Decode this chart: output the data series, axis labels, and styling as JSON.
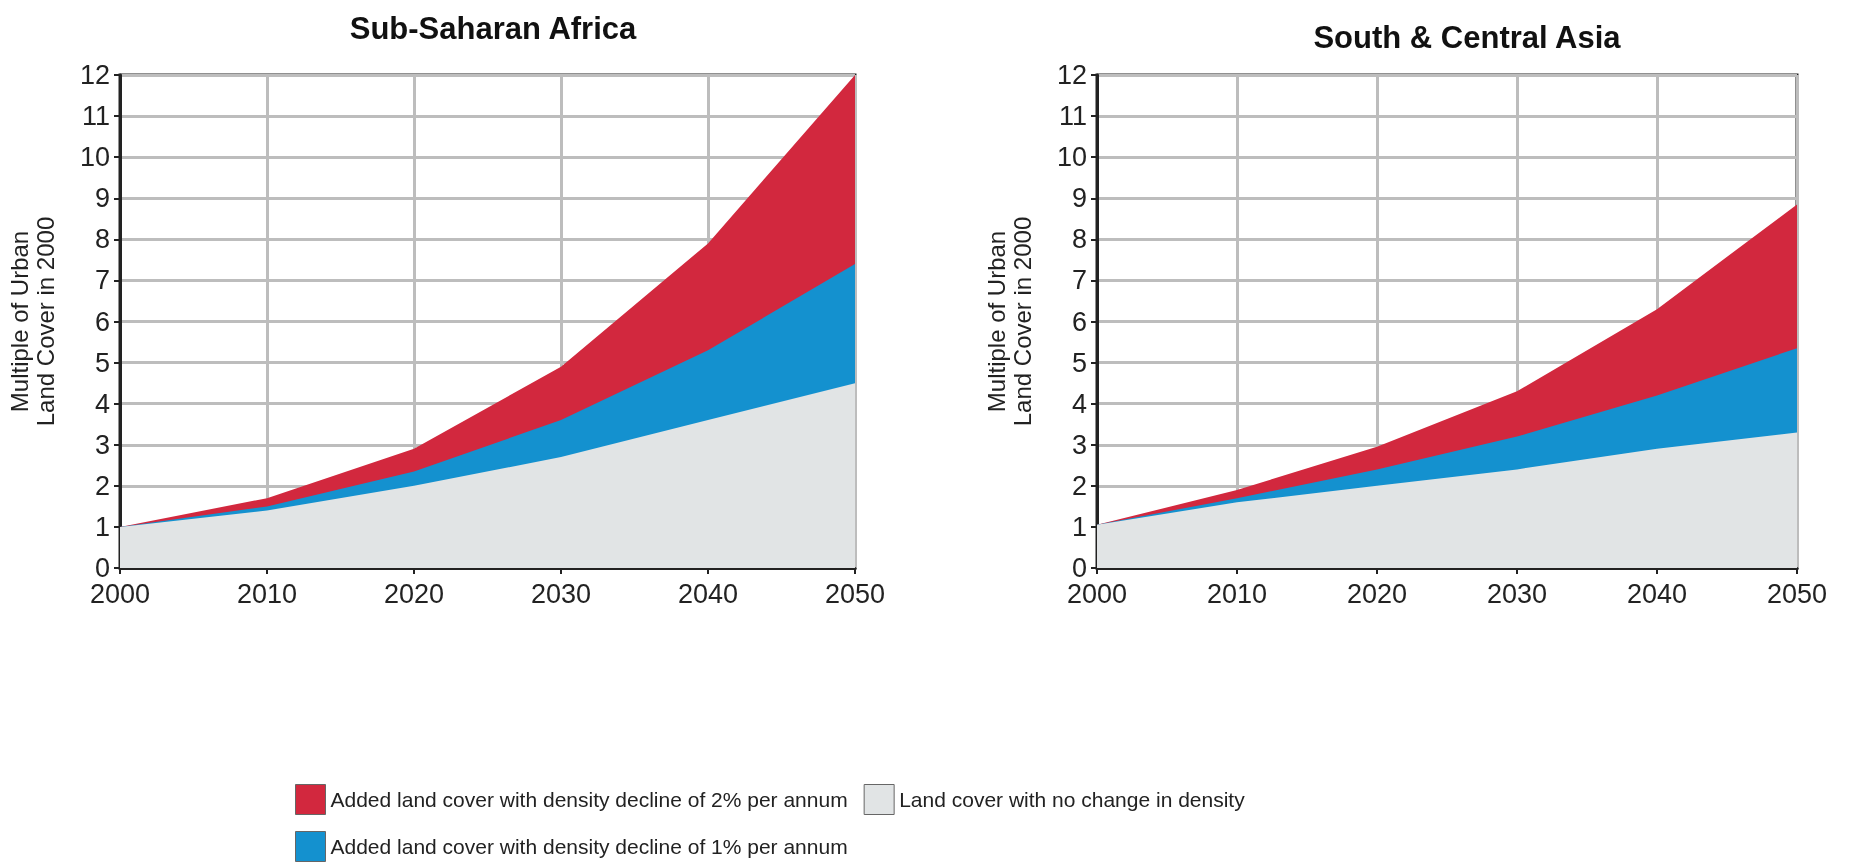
{
  "chart_data": [
    {
      "type": "area",
      "title": "Sub-Saharan Africa",
      "ylabel": "Multiple of Urban Land Cover in 2000",
      "x": [
        2000,
        2010,
        2020,
        2030,
        2040,
        2050
      ],
      "stacked": true,
      "xlim": [
        2000,
        2050
      ],
      "xticks": [
        2000,
        2010,
        2020,
        2030,
        2040,
        2050
      ],
      "ylim": [
        0,
        12
      ],
      "yticks": [
        0,
        1,
        2,
        3,
        4,
        5,
        6,
        7,
        8,
        9,
        10,
        11,
        12
      ],
      "grid": true,
      "legend": "bottom",
      "series": [
        {
          "name": "Land cover with no change in density",
          "color": "#e1e4e5",
          "values": [
            1,
            1.4,
            2.0,
            2.7,
            3.6,
            4.5
          ]
        },
        {
          "name": "Added land cover with density decline of 1% per annum",
          "color": "#1491cf",
          "values": [
            0,
            0.1,
            0.35,
            0.9,
            1.7,
            2.9
          ]
        },
        {
          "name": "Added land cover with density decline of 2% per annum",
          "color": "#d2283e",
          "values": [
            0,
            0.2,
            0.55,
            1.3,
            2.6,
            4.6
          ]
        }
      ]
    },
    {
      "type": "area",
      "title": "South & Central Asia",
      "ylabel": "Multiple of Urban Land Cover in 2000",
      "x": [
        2000,
        2010,
        2020,
        2030,
        2040,
        2050
      ],
      "stacked": true,
      "xlim": [
        2000,
        2050
      ],
      "xticks": [
        2000,
        2010,
        2020,
        2030,
        2040,
        2050
      ],
      "ylim": [
        0,
        12
      ],
      "yticks": [
        0,
        1,
        2,
        3,
        4,
        5,
        6,
        7,
        8,
        9,
        10,
        11,
        12
      ],
      "grid": true,
      "legend": false,
      "series": [
        {
          "color": "#e1e4e5",
          "values": [
            1.05,
            1.6,
            2.0,
            2.4,
            2.9,
            3.3
          ]
        },
        {
          "color": "#1491cf",
          "values": [
            0,
            0.1,
            0.4,
            0.8,
            1.3,
            2.05
          ]
        },
        {
          "color": "#d2283e",
          "values": [
            0,
            0.2,
            0.55,
            1.1,
            2.1,
            3.5
          ]
        }
      ]
    }
  ]
}
